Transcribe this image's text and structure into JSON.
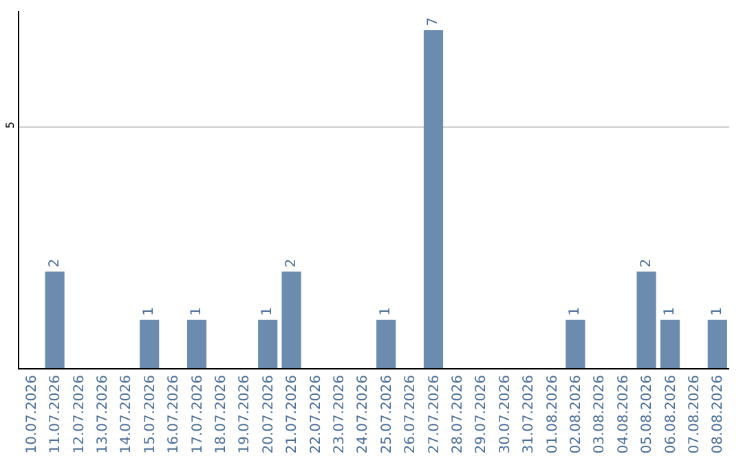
{
  "chart_data": {
    "type": "bar",
    "categories": [
      "10.07.2026",
      "11.07.2026",
      "12.07.2026",
      "13.07.2026",
      "14.07.2026",
      "15.07.2026",
      "16.07.2026",
      "17.07.2026",
      "18.07.2026",
      "19.07.2026",
      "20.07.2026",
      "21.07.2026",
      "22.07.2026",
      "23.07.2026",
      "24.07.2026",
      "25.07.2026",
      "26.07.2026",
      "27.07.2026",
      "28.07.2026",
      "29.07.2026",
      "30.07.2026",
      "31.07.2026",
      "01.08.2026",
      "02.08.2026",
      "03.08.2026",
      "04.08.2026",
      "05.08.2026",
      "06.08.2026",
      "07.08.2026",
      "08.08.2026"
    ],
    "values": [
      0,
      2,
      0,
      0,
      0,
      1,
      0,
      1,
      0,
      0,
      1,
      2,
      0,
      0,
      0,
      1,
      0,
      7,
      0,
      0,
      0,
      0,
      0,
      1,
      0,
      0,
      2,
      1,
      0,
      1
    ],
    "value_labels": [
      null,
      "2",
      null,
      null,
      null,
      "1",
      null,
      "1",
      null,
      null,
      "1",
      "2",
      null,
      null,
      null,
      "1",
      null,
      "7",
      null,
      null,
      null,
      null,
      null,
      "1",
      null,
      null,
      "2",
      "1",
      null,
      "1"
    ],
    "color": "#6b8cae",
    "ylim": [
      0,
      7.4
    ],
    "yticks": [
      5
    ],
    "grid": "y",
    "legend": false
  }
}
